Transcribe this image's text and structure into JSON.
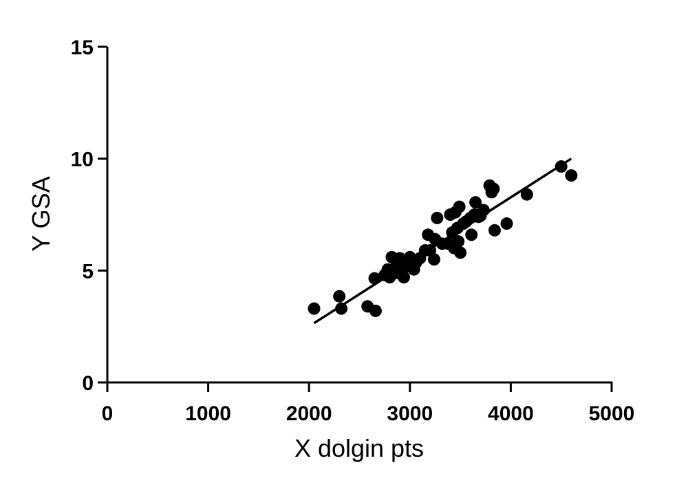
{
  "chart_data": {
    "type": "scatter",
    "xlabel": "X dolgin pts",
    "ylabel": "Y GSA",
    "xlim": [
      0,
      5000
    ],
    "ylim": [
      0,
      15
    ],
    "xticks": [
      0,
      1000,
      2000,
      3000,
      4000,
      5000
    ],
    "yticks": [
      0,
      5,
      10,
      15
    ],
    "grid": false,
    "marker_color": "#000000",
    "series": [
      {
        "points": [
          [
            2050,
            3.3
          ],
          [
            2300,
            3.85
          ],
          [
            2320,
            3.3
          ],
          [
            2580,
            3.4
          ],
          [
            2660,
            3.2
          ],
          [
            2650,
            4.65
          ],
          [
            2750,
            4.8
          ],
          [
            2780,
            5.05
          ],
          [
            2800,
            4.7
          ],
          [
            2820,
            5.6
          ],
          [
            2850,
            5.1
          ],
          [
            2870,
            4.9
          ],
          [
            2880,
            5.3
          ],
          [
            2900,
            5.55
          ],
          [
            2920,
            5.0
          ],
          [
            2940,
            4.7
          ],
          [
            2950,
            5.4
          ],
          [
            2980,
            5.2
          ],
          [
            3000,
            5.6
          ],
          [
            3020,
            5.15
          ],
          [
            3040,
            5.05
          ],
          [
            3060,
            5.35
          ],
          [
            3100,
            5.55
          ],
          [
            3150,
            5.9
          ],
          [
            3180,
            6.6
          ],
          [
            3200,
            5.9
          ],
          [
            3240,
            5.5
          ],
          [
            3250,
            6.4
          ],
          [
            3270,
            7.35
          ],
          [
            3320,
            6.2
          ],
          [
            3380,
            6.2
          ],
          [
            3400,
            7.5
          ],
          [
            3420,
            6.7
          ],
          [
            3440,
            6.0
          ],
          [
            3450,
            7.6
          ],
          [
            3470,
            6.9
          ],
          [
            3480,
            6.3
          ],
          [
            3490,
            7.85
          ],
          [
            3500,
            5.8
          ],
          [
            3530,
            7.1
          ],
          [
            3560,
            7.2
          ],
          [
            3600,
            7.35
          ],
          [
            3610,
            6.6
          ],
          [
            3640,
            7.5
          ],
          [
            3650,
            8.05
          ],
          [
            3680,
            7.4
          ],
          [
            3700,
            7.45
          ],
          [
            3730,
            7.7
          ],
          [
            3790,
            8.8
          ],
          [
            3810,
            8.5
          ],
          [
            3830,
            8.65
          ],
          [
            3840,
            6.8
          ],
          [
            3960,
            7.1
          ],
          [
            4160,
            8.4
          ],
          [
            4500,
            9.65
          ],
          [
            4600,
            9.25
          ]
        ]
      }
    ],
    "fit_line": {
      "x": [
        2050,
        4600
      ],
      "y": [
        2.65,
        10.0
      ]
    }
  }
}
